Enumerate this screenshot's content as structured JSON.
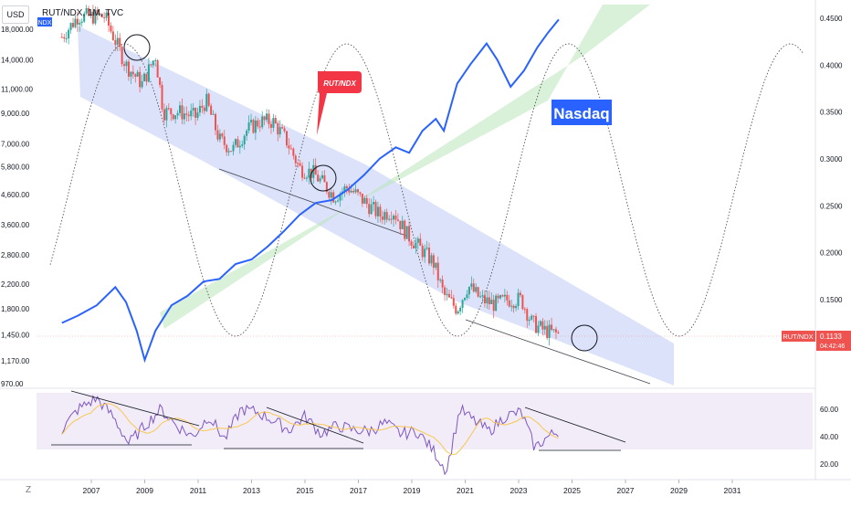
{
  "header": {
    "title": "RUT/NDX, 1M, TVC",
    "currency_button": "USD",
    "ndx_badge": "NDX"
  },
  "colors": {
    "up": "#26a69a",
    "down": "#ef5350",
    "ndx_line": "#2962ff",
    "rsi": "#7e57c2",
    "rsi_ma": "#f9c74f",
    "channel": "#b9c6f5",
    "uptrend": "#b8e6b8"
  },
  "annotations": {
    "rut_ndx_callout": "RUT/NDX",
    "nasdaq_label": "Nasdaq"
  },
  "price_badge": {
    "label": "RUT/NDX",
    "value": "0.1133",
    "countdown": "04:42:46"
  },
  "footer": {
    "z_button": "Z"
  },
  "chart_data": [
    {
      "type": "candlestick",
      "name": "RUT/NDX",
      "x_ticks": [
        "2007",
        "2009",
        "2011",
        "2013",
        "2015",
        "2017",
        "2019",
        "2021",
        "2023",
        "2025",
        "2027",
        "2029",
        "2031"
      ],
      "right_ticks": [
        "0.4500",
        "0.4000",
        "0.3500",
        "0.3000",
        "0.2500",
        "0.2000",
        "0.1500"
      ],
      "left_ticks": [
        "18,000.00",
        "14,000.00",
        "11,000.00",
        "9,000.00",
        "7,000.00",
        "5,800.00",
        "4,600.00",
        "3,600.00",
        "2,800.00",
        "2,200.00",
        "1,800.00",
        "1,450.00",
        "1,170.00",
        "970.00"
      ],
      "ratio_path": [
        [
          2005.9,
          0.43
        ],
        [
          2006.5,
          0.452
        ],
        [
          2007.5,
          0.452
        ],
        [
          2008.3,
          0.4
        ],
        [
          2008.9,
          0.38
        ],
        [
          2009.4,
          0.41
        ],
        [
          2009.7,
          0.35
        ],
        [
          2010.3,
          0.35
        ],
        [
          2010.9,
          0.345
        ],
        [
          2011.3,
          0.362
        ],
        [
          2011.8,
          0.32
        ],
        [
          2012.3,
          0.31
        ],
        [
          2012.8,
          0.33
        ],
        [
          2013.3,
          0.34
        ],
        [
          2013.8,
          0.34
        ],
        [
          2014.3,
          0.32
        ],
        [
          2014.8,
          0.29
        ],
        [
          2015.3,
          0.285
        ],
        [
          2015.8,
          0.27
        ],
        [
          2016.1,
          0.26
        ],
        [
          2016.6,
          0.27
        ],
        [
          2017.2,
          0.255
        ],
        [
          2017.8,
          0.24
        ],
        [
          2018.3,
          0.245
        ],
        [
          2018.8,
          0.22
        ],
        [
          2019.3,
          0.205
        ],
        [
          2019.8,
          0.19
        ],
        [
          2020.2,
          0.155
        ],
        [
          2020.7,
          0.14
        ],
        [
          2021.1,
          0.165
        ],
        [
          2021.6,
          0.15
        ],
        [
          2022.1,
          0.145
        ],
        [
          2022.6,
          0.15
        ],
        [
          2023.1,
          0.15
        ],
        [
          2023.5,
          0.125
        ],
        [
          2023.9,
          0.118
        ],
        [
          2024.3,
          0.114
        ],
        [
          2024.5,
          0.1133
        ]
      ]
    },
    {
      "type": "line",
      "name": "NDX",
      "points": [
        [
          2005.9,
          1600
        ],
        [
          2006.5,
          1700
        ],
        [
          2007.2,
          1850
        ],
        [
          2007.9,
          2150
        ],
        [
          2008.3,
          1900
        ],
        [
          2008.7,
          1500
        ],
        [
          2009.0,
          1180
        ],
        [
          2009.4,
          1500
        ],
        [
          2010.0,
          1850
        ],
        [
          2010.6,
          2000
        ],
        [
          2011.2,
          2250
        ],
        [
          2011.8,
          2300
        ],
        [
          2012.4,
          2600
        ],
        [
          2013.0,
          2700
        ],
        [
          2013.6,
          3000
        ],
        [
          2014.2,
          3400
        ],
        [
          2014.8,
          3900
        ],
        [
          2015.4,
          4300
        ],
        [
          2016.0,
          4400
        ],
        [
          2016.6,
          4800
        ],
        [
          2017.2,
          5400
        ],
        [
          2017.8,
          6200
        ],
        [
          2018.4,
          6800
        ],
        [
          2018.9,
          6500
        ],
        [
          2019.4,
          7800
        ],
        [
          2019.9,
          8600
        ],
        [
          2020.2,
          7800
        ],
        [
          2020.7,
          11500
        ],
        [
          2021.2,
          13500
        ],
        [
          2021.8,
          16000
        ],
        [
          2022.2,
          14000
        ],
        [
          2022.7,
          11200
        ],
        [
          2023.2,
          12800
        ],
        [
          2023.7,
          15500
        ],
        [
          2024.1,
          17500
        ],
        [
          2024.5,
          19500
        ]
      ]
    },
    {
      "type": "line",
      "name": "RSI",
      "y_ticks": [
        "60.00",
        "40.00",
        "20.00"
      ],
      "ylim": [
        10,
        75
      ],
      "points": [
        [
          2005.9,
          45
        ],
        [
          2006.5,
          60
        ],
        [
          2007.2,
          68
        ],
        [
          2007.8,
          55
        ],
        [
          2008.4,
          35
        ],
        [
          2009.0,
          48
        ],
        [
          2009.6,
          60
        ],
        [
          2010.2,
          48
        ],
        [
          2010.8,
          40
        ],
        [
          2011.4,
          55
        ],
        [
          2012.0,
          38
        ],
        [
          2012.6,
          60
        ],
        [
          2013.2,
          58
        ],
        [
          2013.8,
          52
        ],
        [
          2014.4,
          45
        ],
        [
          2015.0,
          55
        ],
        [
          2015.6,
          42
        ],
        [
          2016.2,
          48
        ],
        [
          2016.8,
          45
        ],
        [
          2017.4,
          44
        ],
        [
          2018.0,
          50
        ],
        [
          2018.6,
          42
        ],
        [
          2019.2,
          44
        ],
        [
          2019.8,
          30
        ],
        [
          2020.3,
          15
        ],
        [
          2020.8,
          60
        ],
        [
          2021.3,
          52
        ],
        [
          2021.9,
          44
        ],
        [
          2022.5,
          55
        ],
        [
          2023.1,
          58
        ],
        [
          2023.6,
          32
        ],
        [
          2024.1,
          40
        ],
        [
          2024.5,
          44
        ]
      ]
    }
  ]
}
